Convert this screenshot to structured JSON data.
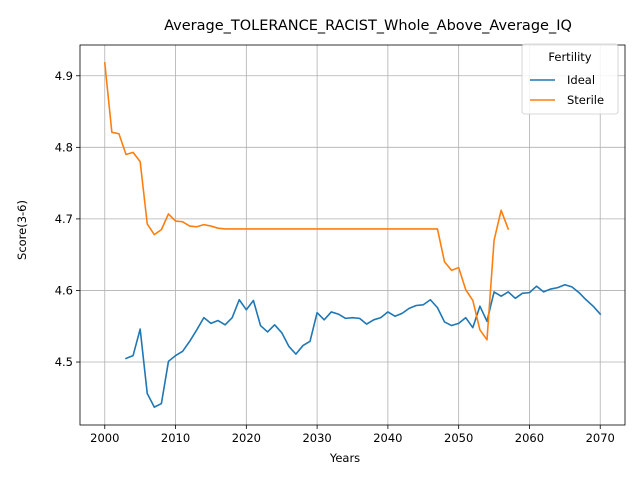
{
  "chart_data": {
    "type": "line",
    "title": "Average_TOLERANCE_RACIST_Whole_Above_Average_IQ",
    "xlabel": "Years",
    "ylabel": "Score(3-6)",
    "xlim": [
      1996.5,
      2073.5
    ],
    "ylim": [
      4.412,
      4.943
    ],
    "xticks": [
      2000,
      2010,
      2020,
      2030,
      2040,
      2050,
      2060,
      2070
    ],
    "yticks": [
      4.5,
      4.6,
      4.7,
      4.8,
      4.9
    ],
    "grid": true,
    "legend": {
      "title": "Fertility",
      "position": "top-right"
    },
    "series": [
      {
        "name": "Ideal",
        "color": "#1f77b4",
        "x": [
          2003,
          2004,
          2005,
          2006,
          2007,
          2008,
          2009,
          2010,
          2011,
          2012,
          2013,
          2014,
          2015,
          2016,
          2017,
          2018,
          2019,
          2020,
          2021,
          2022,
          2023,
          2024,
          2025,
          2026,
          2027,
          2028,
          2029,
          2030,
          2031,
          2032,
          2033,
          2034,
          2035,
          2036,
          2037,
          2038,
          2039,
          2040,
          2041,
          2042,
          2043,
          2044,
          2045,
          2046,
          2047,
          2048,
          2049,
          2050,
          2051,
          2052,
          2053,
          2054,
          2055,
          2056,
          2057,
          2058,
          2059,
          2060,
          2061,
          2062,
          2063,
          2064,
          2065,
          2066,
          2067,
          2068,
          2069,
          2070
        ],
        "y": [
          4.505,
          4.509,
          4.546,
          4.456,
          4.437,
          4.442,
          4.501,
          4.509,
          4.515,
          4.529,
          4.545,
          4.562,
          4.554,
          4.558,
          4.552,
          4.562,
          4.587,
          4.573,
          4.586,
          4.551,
          4.542,
          4.552,
          4.541,
          4.522,
          4.511,
          4.523,
          4.529,
          4.569,
          4.559,
          4.57,
          4.567,
          4.561,
          4.562,
          4.561,
          4.553,
          4.559,
          4.562,
          4.57,
          4.564,
          4.568,
          4.575,
          4.579,
          4.58,
          4.587,
          4.576,
          4.556,
          4.551,
          4.554,
          4.562,
          4.548,
          4.578,
          4.557,
          4.598,
          4.592,
          4.598,
          4.589,
          4.596,
          4.597,
          4.606,
          4.598,
          4.602,
          4.604,
          4.608,
          4.605,
          4.597,
          4.587,
          4.578,
          4.567
        ]
      },
      {
        "name": "Sterile",
        "color": "#ff7f0e",
        "x": [
          2000,
          2001,
          2002,
          2003,
          2004,
          2005,
          2006,
          2007,
          2008,
          2009,
          2010,
          2011,
          2012,
          2013,
          2014,
          2015,
          2016,
          2017,
          2018,
          2019,
          2020,
          2021,
          2022,
          2023,
          2024,
          2025,
          2026,
          2027,
          2028,
          2029,
          2030,
          2031,
          2032,
          2033,
          2034,
          2035,
          2036,
          2037,
          2038,
          2039,
          2040,
          2041,
          2042,
          2043,
          2044,
          2045,
          2046,
          2047,
          2048,
          2049,
          2050,
          2051,
          2052,
          2053,
          2054,
          2055,
          2056,
          2057
        ],
        "y": [
          4.918,
          4.821,
          4.819,
          4.79,
          4.793,
          4.78,
          4.693,
          4.678,
          4.685,
          4.707,
          4.697,
          4.696,
          4.69,
          4.689,
          4.692,
          4.69,
          4.687,
          4.686,
          4.686,
          4.686,
          4.686,
          4.686,
          4.686,
          4.686,
          4.686,
          4.686,
          4.686,
          4.686,
          4.686,
          4.686,
          4.686,
          4.686,
          4.686,
          4.686,
          4.686,
          4.686,
          4.686,
          4.686,
          4.686,
          4.686,
          4.686,
          4.686,
          4.686,
          4.686,
          4.686,
          4.686,
          4.686,
          4.686,
          4.64,
          4.628,
          4.632,
          4.601,
          4.586,
          4.545,
          4.531,
          4.67,
          4.712,
          4.686
        ]
      }
    ]
  }
}
